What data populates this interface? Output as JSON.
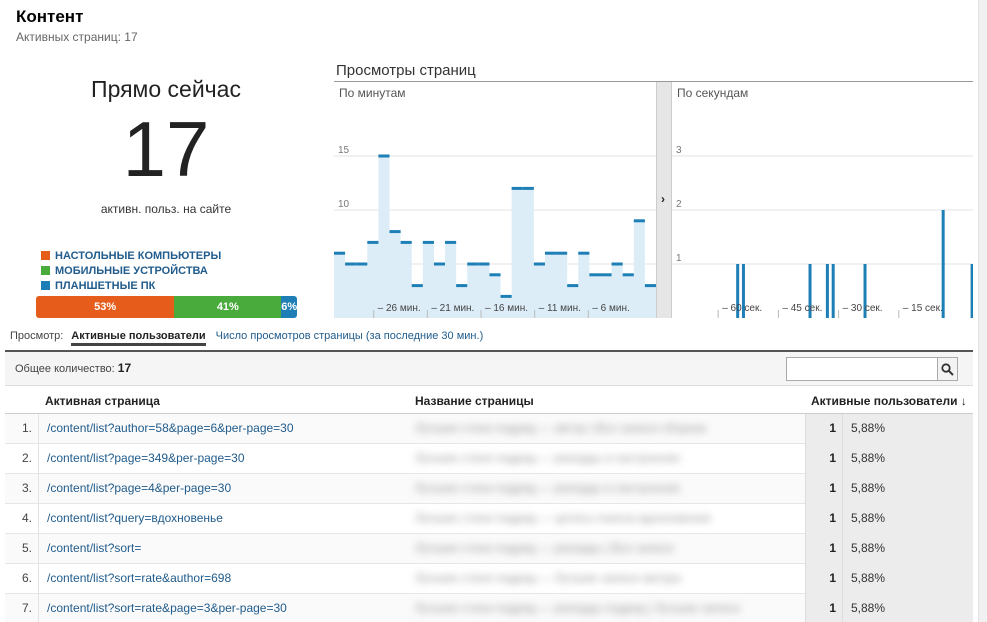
{
  "header": {
    "title": "Контент",
    "subtitle": "Активных страниц: 17"
  },
  "right_now": {
    "title": "Прямо сейчас",
    "count": "17",
    "label": "активн. польз. на сайте",
    "legend": [
      {
        "label": "НАСТОЛЬНЫЕ КОМПЬЮТЕРЫ",
        "color": "#e65c1a"
      },
      {
        "label": "МОБИЛЬНЫЕ УСТРОЙСТВА",
        "color": "#4aab3d"
      },
      {
        "label": "ПЛАНШЕТНЫЕ ПК",
        "color": "#1d7fb6"
      }
    ],
    "share": [
      {
        "label": "53%",
        "value": 53,
        "color": "#e65c1a"
      },
      {
        "label": "41%",
        "value": 41,
        "color": "#4aab3d"
      },
      {
        "label": "6%",
        "value": 6,
        "color": "#1d7fb6"
      }
    ]
  },
  "pageviews": {
    "title": "Просмотры страниц"
  },
  "chart_data": [
    {
      "type": "bar",
      "title": "По минутам",
      "ylim": [
        0,
        20
      ],
      "yticks": [
        "5",
        "10",
        "15"
      ],
      "xticks": [
        "– 26 мин.",
        "– 21 мин.",
        "– 16 мин.",
        "– 11 мин.",
        "– 6 мин."
      ],
      "values": [
        6,
        5,
        5,
        7,
        15,
        8,
        7,
        3,
        7,
        5,
        7,
        3,
        5,
        5,
        4,
        2,
        12,
        12,
        5,
        6,
        6,
        3,
        6,
        4,
        4,
        5,
        4,
        9,
        3
      ]
    },
    {
      "type": "bar",
      "title": "По секундам",
      "ylim": [
        0,
        4
      ],
      "yticks": [
        "1",
        "2",
        "3"
      ],
      "xticks": [
        "– 60 сек.",
        "– 45 сек.",
        "– 30 сек.",
        "– 15 сек."
      ],
      "values": [
        0,
        0,
        0,
        0,
        0,
        0,
        0,
        0,
        0,
        0,
        0,
        0,
        0,
        0,
        0,
        0,
        0,
        0,
        0,
        0,
        0,
        0,
        1,
        0,
        1,
        0,
        0,
        0,
        0,
        0,
        0,
        0,
        0,
        0,
        0,
        0,
        0,
        0,
        0,
        0,
        0,
        0,
        0,
        0,
        0,
        0,
        0,
        1,
        0,
        0,
        0,
        0,
        0,
        1,
        0,
        1,
        0,
        0,
        0,
        0,
        0,
        0,
        0,
        0,
        0,
        0,
        1,
        0,
        0,
        0,
        0,
        0,
        0,
        0,
        0,
        0,
        0,
        0,
        0,
        0,
        0,
        0,
        0,
        0,
        0,
        0,
        0,
        0,
        0,
        0,
        0,
        0,
        0,
        2,
        0,
        0,
        0,
        0,
        0,
        0,
        0,
        0,
        0,
        1
      ]
    }
  ],
  "view_switch": {
    "label": "Просмотр:",
    "active": "Активные пользователи",
    "other": "Число просмотров страницы (за последние 30 мин.)"
  },
  "table": {
    "total_label": "Общее количество:",
    "total_value": "17",
    "search_placeholder": "",
    "headers": {
      "page": "Активная страница",
      "title": "Название страницы",
      "users": "Активные пользователи"
    },
    "sort_icon": "arrow-down-icon",
    "rows": [
      {
        "idx": "1.",
        "page": "/content/list?author=58&page=6&per-page=30",
        "title": "Лучшие стихи подряд — автор | Все записи сборник",
        "users": "1",
        "pct": "5,88%"
      },
      {
        "idx": "2.",
        "page": "/content/list?page=349&per-page=30",
        "title": "Лучшие стихи подряд — рекорды и настроение",
        "users": "1",
        "pct": "5,88%"
      },
      {
        "idx": "3.",
        "page": "/content/list?page=4&per-page=30",
        "title": "Лучшие стихи подряд — рекорды и настроение",
        "users": "1",
        "pct": "5,88%"
      },
      {
        "idx": "4.",
        "page": "/content/list?query=вдохновенье",
        "title": "Лучшие стихи подряд — цитаты поиска вдохновения",
        "users": "1",
        "pct": "5,88%"
      },
      {
        "idx": "5.",
        "page": "/content/list?sort=",
        "title": "Лучшие стихи подряд — рекорды | Все записи",
        "users": "1",
        "pct": "5,88%"
      },
      {
        "idx": "6.",
        "page": "/content/list?sort=rate&author=698",
        "title": "Лучшие стихи подряд — Лучшие записи автора",
        "users": "1",
        "pct": "5,88%"
      },
      {
        "idx": "7.",
        "page": "/content/list?sort=rate&page=3&per-page=30",
        "title": "Лучшие стихи подряд — рекорды подряд | Лучшие записи",
        "users": "1",
        "pct": "5,88%"
      }
    ]
  }
}
